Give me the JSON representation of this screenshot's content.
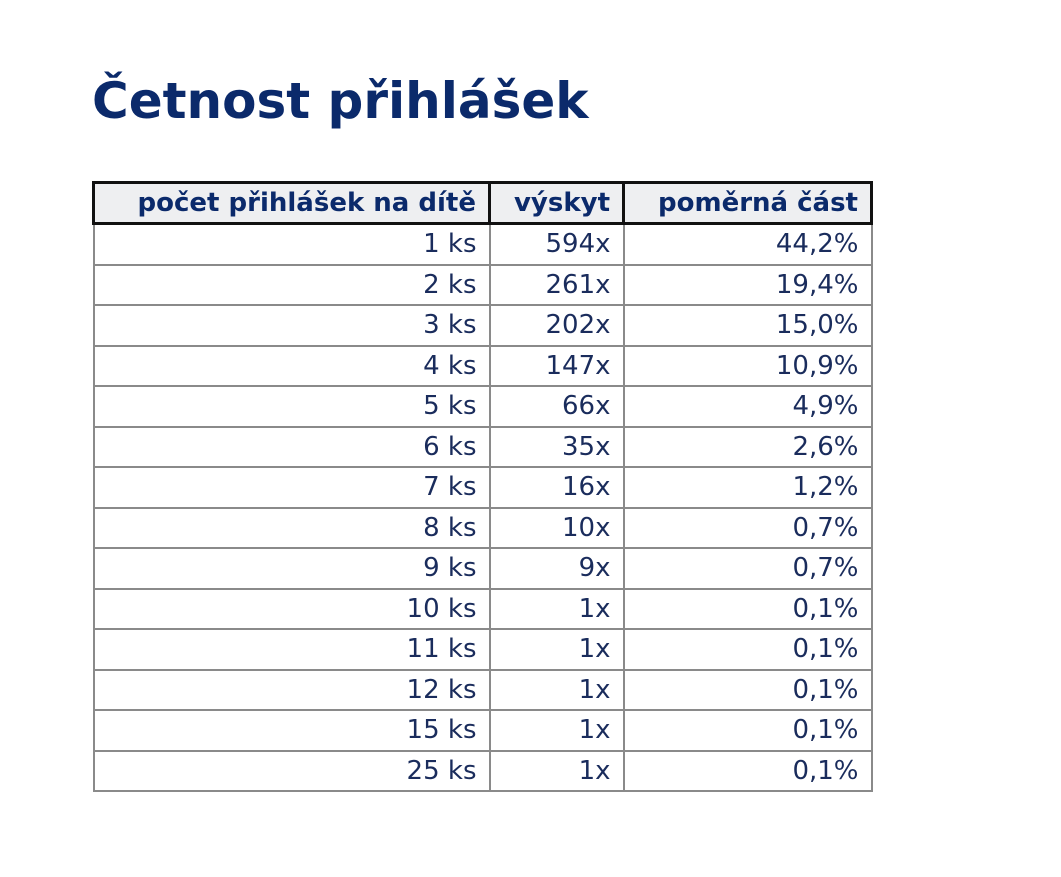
{
  "title": "Četnost přihlášek",
  "table": {
    "headers": [
      "počet přihlášek na dítě",
      "výskyt",
      "poměrná část"
    ],
    "rows": [
      [
        "1 ks",
        "594x",
        "44,2%"
      ],
      [
        "2 ks",
        "261x",
        "19,4%"
      ],
      [
        "3 ks",
        "202x",
        "15,0%"
      ],
      [
        "4 ks",
        "147x",
        "10,9%"
      ],
      [
        "5 ks",
        "66x",
        "4,9%"
      ],
      [
        "6 ks",
        "35x",
        "2,6%"
      ],
      [
        "7 ks",
        "16x",
        "1,2%"
      ],
      [
        "8 ks",
        "10x",
        "0,7%"
      ],
      [
        "9 ks",
        "9x",
        "0,7%"
      ],
      [
        "10 ks",
        "1x",
        "0,1%"
      ],
      [
        "11 ks",
        "1x",
        "0,1%"
      ],
      [
        "12 ks",
        "1x",
        "0,1%"
      ],
      [
        "15 ks",
        "1x",
        "0,1%"
      ],
      [
        "25 ks",
        "1x",
        "0,1%"
      ]
    ]
  },
  "colors": {
    "title": "#0b2a6b",
    "text": "#1a2c5c",
    "header_bg": "#eeeff1"
  }
}
